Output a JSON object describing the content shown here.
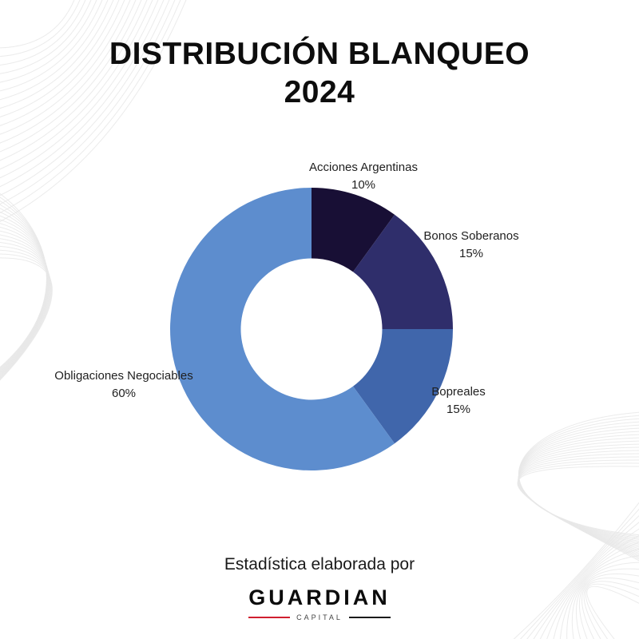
{
  "page": {
    "title_line1": "DISTRIBUCIÓN BLANQUEO",
    "title_line2": "2024",
    "footer_text": "Estadística elaborada por",
    "brand_name": "GUARDIAN",
    "brand_sub": "CAPITAL",
    "brand_accent_color": "#d01f2f"
  },
  "chart_data": {
    "type": "pie",
    "subtype": "donut",
    "title": "DISTRIBUCIÓN BLANQUEO 2024",
    "start_angle_deg": 0,
    "direction": "clockwise",
    "inner_radius_ratio": 0.5,
    "legend_position": "labels-outside",
    "slices": [
      {
        "label": "Acciones Argentinas",
        "value": 10,
        "percent_label": "10%",
        "color": "#180f35"
      },
      {
        "label": "Bonos Soberanos",
        "value": 15,
        "percent_label": "15%",
        "color": "#2f2e6b"
      },
      {
        "label": "Bopreales",
        "value": 15,
        "percent_label": "15%",
        "color": "#4066ab"
      },
      {
        "label": "Obligaciones Negociables",
        "value": 60,
        "percent_label": "60%",
        "color": "#5d8dce"
      }
    ]
  }
}
